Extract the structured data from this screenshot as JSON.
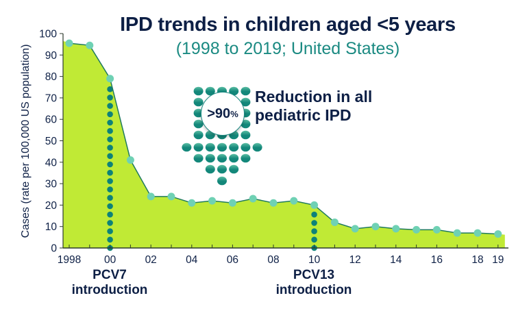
{
  "chart_data": {
    "type": "area",
    "title": "IPD trends in children aged <5 years",
    "subtitle": "(1998 to 2019; United States)",
    "xlabel": "",
    "ylabel": "Cases (rate per 100,000 US population)",
    "x": [
      1998,
      1999,
      2000,
      2001,
      2002,
      2003,
      2004,
      2005,
      2006,
      2007,
      2008,
      2009,
      2010,
      2011,
      2012,
      2013,
      2014,
      2015,
      2016,
      2017,
      2018,
      2019
    ],
    "series": [
      {
        "name": "IPD rate",
        "values": [
          95.5,
          94.5,
          79,
          41,
          24,
          24,
          21,
          22,
          21,
          23,
          21,
          22,
          20,
          12,
          9,
          10,
          9,
          8.5,
          8.5,
          7,
          7,
          6.5
        ]
      }
    ],
    "xlim": [
      1998,
      2019
    ],
    "ylim": [
      0,
      100
    ],
    "yticks": [
      0,
      10,
      20,
      30,
      40,
      50,
      60,
      70,
      80,
      90,
      100
    ],
    "xtick_labels": [
      {
        "x": 1998,
        "label": "1998"
      },
      {
        "x": 2000,
        "label": "00"
      },
      {
        "x": 2002,
        "label": "02"
      },
      {
        "x": 2004,
        "label": "04"
      },
      {
        "x": 2006,
        "label": "06"
      },
      {
        "x": 2008,
        "label": "08"
      },
      {
        "x": 2010,
        "label": "10"
      },
      {
        "x": 2012,
        "label": "12"
      },
      {
        "x": 2014,
        "label": "14"
      },
      {
        "x": 2016,
        "label": "16"
      },
      {
        "x": 2018,
        "label": "18"
      },
      {
        "x": 2019,
        "label": "19"
      }
    ],
    "grid": false,
    "annotations": [
      {
        "x": 2000,
        "line1": "PCV7",
        "line2": "introduction"
      },
      {
        "x": 2010,
        "line1": "PCV13",
        "line2": "introduction"
      }
    ],
    "callout": {
      "value": ">90",
      "unit": "%",
      "text_line1": "Reduction in all",
      "text_line2": "pediatric IPD"
    }
  },
  "colors": {
    "area_fill": "#c0ea35",
    "line": "#1f7a5e",
    "point": "#6fd1b4",
    "vline_dot": "#0d8279",
    "arrow_top": "#5cbfa4",
    "arrow_bottom": "#13877a",
    "title": "#0d1f45",
    "subtitle": "#1b8a82",
    "axis": "#2c3a2c"
  }
}
